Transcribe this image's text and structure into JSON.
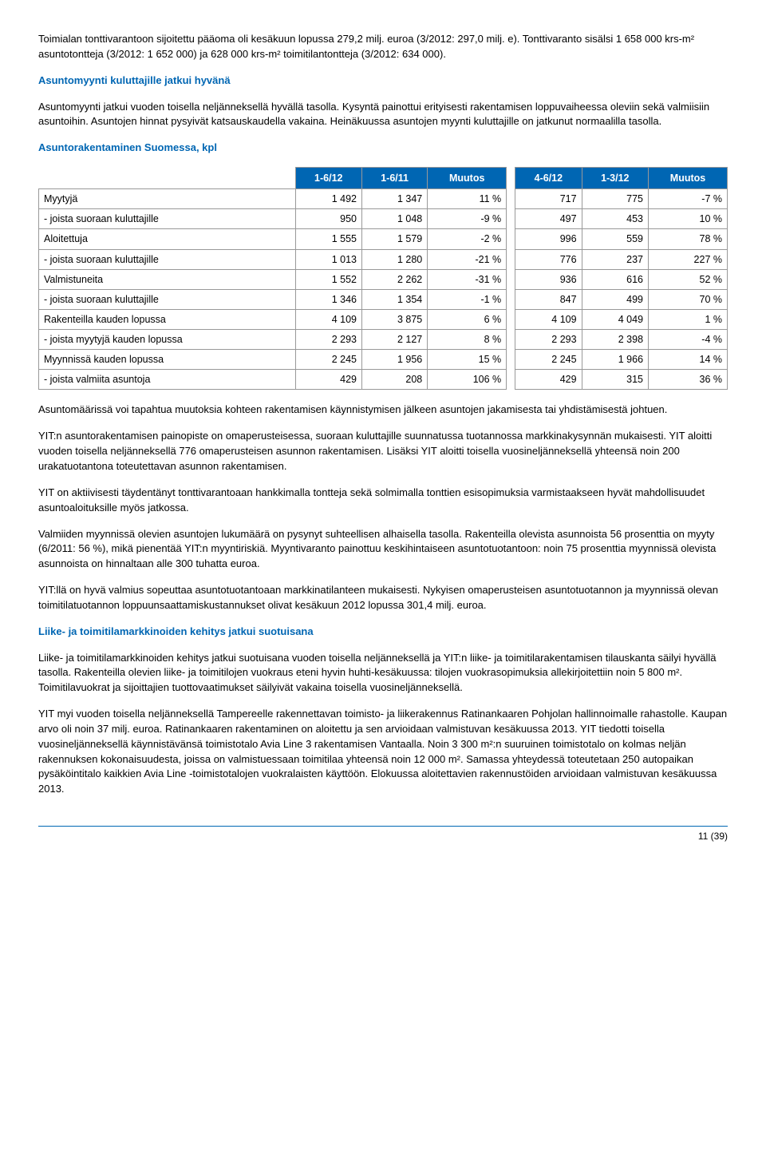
{
  "intro_para": "Toimialan tonttivarantoon sijoitettu pääoma oli kesäkuun lopussa 279,2 milj. euroa (3/2012: 297,0 milj. e). Tonttivaranto sisälsi 1 658 000 krs-m² asuntotontteja (3/2012: 1 652 000) ja 628 000 krs-m² toimitilantontteja (3/2012: 634 000).",
  "section1": {
    "title": "Asuntomyynti kuluttajille jatkui hyvänä",
    "para": "Asuntomyynti jatkui vuoden toisella neljänneksellä hyvällä tasolla. Kysyntä painottui erityisesti rakentamisen loppuvaiheessa oleviin sekä valmiisiin asuntoihin. Asuntojen hinnat pysyivät katsauskaudella vakaina. Heinäkuussa asuntojen myynti kuluttajille on jatkunut normaalilla tasolla."
  },
  "section2": {
    "title": "Asuntorakentaminen Suomessa, kpl"
  },
  "table": {
    "headers": [
      "1-6/12",
      "1-6/11",
      "Muutos",
      "4-6/12",
      "1-3/12",
      "Muutos"
    ],
    "rows": [
      {
        "label": "Myytyjä",
        "c": [
          "1 492",
          "1 347",
          "11 %",
          "717",
          "775",
          "-7 %"
        ]
      },
      {
        "label": "- joista suoraan kuluttajille",
        "c": [
          "950",
          "1 048",
          "-9 %",
          "497",
          "453",
          "10 %"
        ]
      },
      {
        "label": "Aloitettuja",
        "c": [
          "1 555",
          "1 579",
          "-2 %",
          "996",
          "559",
          "78 %"
        ]
      },
      {
        "label": "- joista suoraan kuluttajille",
        "c": [
          "1 013",
          "1 280",
          "-21 %",
          "776",
          "237",
          "227 %"
        ]
      },
      {
        "label": "Valmistuneita",
        "c": [
          "1 552",
          "2 262",
          "-31 %",
          "936",
          "616",
          "52 %"
        ]
      },
      {
        "label": "- joista suoraan kuluttajille",
        "c": [
          "1 346",
          "1 354",
          "-1 %",
          "847",
          "499",
          "70 %"
        ]
      },
      {
        "label": "Rakenteilla kauden lopussa",
        "c": [
          "4 109",
          "3 875",
          "6 %",
          "4 109",
          "4 049",
          "1 %"
        ]
      },
      {
        "label": "- joista myytyjä kauden lopussa",
        "c": [
          "2 293",
          "2 127",
          "8 %",
          "2 293",
          "2 398",
          "-4 %"
        ]
      },
      {
        "label": "Myynnissä kauden lopussa",
        "c": [
          "2 245",
          "1 956",
          "15 %",
          "2 245",
          "1 966",
          "14 %"
        ]
      },
      {
        "label": "- joista valmiita asuntoja",
        "c": [
          "429",
          "208",
          "106 %",
          "429",
          "315",
          "36 %"
        ]
      }
    ]
  },
  "after_paras": [
    "Asuntomäärissä voi tapahtua muutoksia kohteen rakentamisen käynnistymisen jälkeen asuntojen jakamisesta tai yhdistämisestä johtuen.",
    "YIT:n asuntorakentamisen painopiste on omaperusteisessa, suoraan kuluttajille suunnatussa tuotannossa markkinakysynnän mukaisesti. YIT aloitti vuoden toisella neljänneksellä 776 omaperusteisen asunnon rakentamisen. Lisäksi YIT aloitti toisella vuosineljänneksellä yhteensä noin 200 urakatuotantona toteutettavan asunnon rakentamisen.",
    "YIT on aktiivisesti täydentänyt tonttivarantoaan hankkimalla tontteja sekä solmimalla tonttien esisopimuksia varmistaakseen hyvät mahdollisuudet asuntoaloituksille myös jatkossa.",
    "Valmiiden myynnissä olevien asuntojen lukumäärä on pysynyt suhteellisen alhaisella tasolla. Rakenteilla olevista asunnoista 56 prosenttia on myyty (6/2011: 56 %), mikä pienentää YIT:n myyntiriskiä. Myyntivaranto painottuu keskihintaiseen asuntotuotantoon: noin 75 prosenttia myynnissä olevista asunnoista on hinnaltaan alle 300 tuhatta euroa.",
    "YIT:llä on hyvä valmius sopeuttaa asuntotuotantoaan markkinatilanteen mukaisesti. Nykyisen omaperusteisen asuntotuotannon ja myynnissä olevan toimitilatuotannon loppuunsaattamiskustannukset olivat kesäkuun 2012 lopussa 301,4 milj. euroa."
  ],
  "section3": {
    "title": "Liike- ja toimitilamarkkinoiden kehitys jatkui suotuisana",
    "paras": [
      "Liike- ja toimitilamarkkinoiden kehitys jatkui suotuisana vuoden toisella neljänneksellä ja YIT:n liike- ja toimitilarakentamisen tilauskanta säilyi hyvällä tasolla. Rakenteilla olevien liike- ja toimitilojen vuokraus eteni hyvin huhti-kesäkuussa: tilojen vuokrasopimuksia allekirjoitettiin noin 5 800 m². Toimitilavuokrat ja sijoittajien tuottovaatimukset säilyivät vakaina toisella vuosineljänneksellä.",
      "YIT myi vuoden toisella neljänneksellä Tampereelle rakennettavan toimisto- ja liikerakennus Ratinankaaren Pohjolan hallinnoimalle rahastolle. Kaupan arvo oli noin 37 milj. euroa. Ratinankaaren rakentaminen on aloitettu ja sen arvioidaan valmistuvan kesäkuussa 2013. YIT tiedotti toisella vuosineljänneksellä käynnistävänsä toimistotalo Avia Line 3 rakentamisen Vantaalla. Noin 3 300 m²:n suuruinen toimistotalo on kolmas neljän rakennuksen kokonaisuudesta, joissa on valmistuessaan toimitilaa yhteensä noin 12 000 m². Samassa yhteydessä toteutetaan 250 autopaikan pysäköintitalo kaikkien Avia Line -toimistotalojen vuokralaisten käyttöön. Elokuussa aloitettavien rakennustöiden arvioidaan valmistuvan kesäkuussa 2013."
    ]
  },
  "page_num": "11 (39)"
}
